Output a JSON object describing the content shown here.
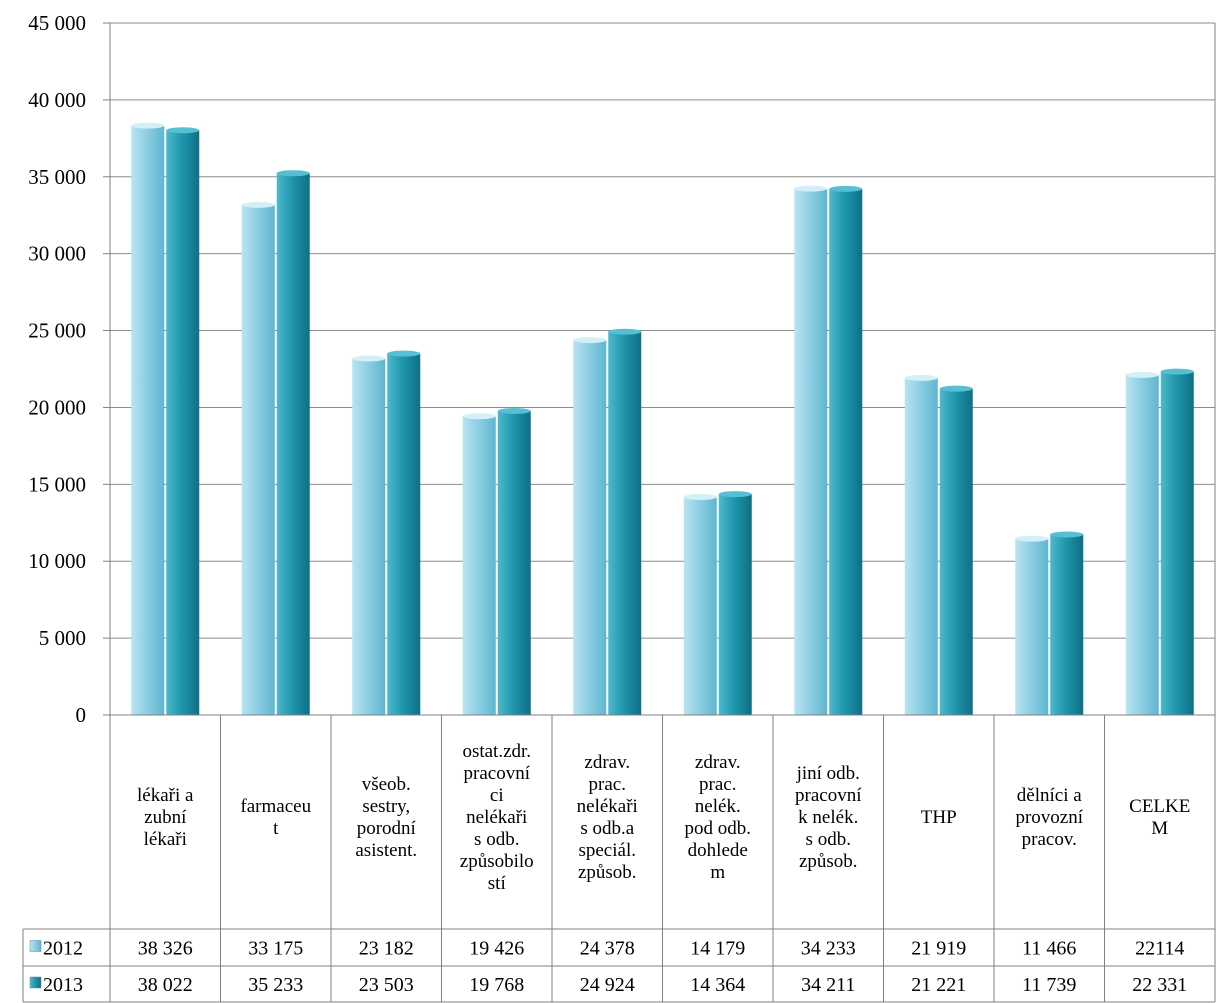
{
  "chart_data": {
    "type": "bar",
    "title": "",
    "xlabel": "",
    "ylabel": "",
    "ylim": [
      0,
      45000
    ],
    "yticks": [
      "0",
      "5 000",
      "10 000",
      "15 000",
      "20 000",
      "25 000",
      "30 000",
      "35 000",
      "40 000",
      "45 000"
    ],
    "ytick_values": [
      0,
      5000,
      10000,
      15000,
      20000,
      25000,
      30000,
      35000,
      40000,
      45000
    ],
    "grid": true,
    "legend_placement": "data-table-left",
    "categories": [
      "lékaři a zubní lékaři",
      "farmaceut",
      "všeob. sestry, porodní asistent.",
      "ostat.zdr. pracovníci nelékaři s odb. způsobilostí",
      "zdrav. prac. nelékaři s odb.a speciál. způsob.",
      "zdrav. prac. nelék. pod odb. dohledem",
      "jiní odb. pracovník nelék. s odb. způsob.",
      "THP",
      "dělníci a provozní pracov.",
      "CELKEM"
    ],
    "category_label_lines": [
      [
        "lékaři a",
        "zubní",
        "lékaři"
      ],
      [
        "farmaceu",
        "t"
      ],
      [
        "všeob.",
        "sestry,",
        "porodní",
        "asistent."
      ],
      [
        "ostat.zdr.",
        "pracovní",
        "ci",
        "nelékaři",
        "s odb.",
        "způsobilo",
        "stí"
      ],
      [
        "zdrav.",
        "prac.",
        "nelékaři",
        "s odb.a",
        "speciál.",
        "způsob."
      ],
      [
        "zdrav.",
        "prac.",
        "nelék.",
        "pod odb.",
        "dohlede",
        "m"
      ],
      [
        "jiní odb.",
        "pracovní",
        "k nelék.",
        "s odb.",
        "způsob."
      ],
      [
        "THP"
      ],
      [
        "dělníci a",
        "provozní",
        "pracov."
      ],
      [
        "CELKE",
        "M"
      ]
    ],
    "series": [
      {
        "name": "2012",
        "color": "#8fcfe3",
        "values": [
          38326,
          33175,
          23182,
          19426,
          24378,
          14179,
          34233,
          21919,
          11466,
          22114
        ],
        "labels": [
          "38 326",
          "33 175",
          "23 182",
          "19 426",
          "24 378",
          "14 179",
          "34 233",
          "21 919",
          "11 466",
          "22114"
        ]
      },
      {
        "name": "2013",
        "color": "#1f97ad",
        "values": [
          38022,
          35233,
          23503,
          19768,
          24924,
          14364,
          34211,
          21221,
          11739,
          22331
        ],
        "labels": [
          "38 022",
          "35 233",
          "23 503",
          "19 768",
          "24 924",
          "14 364",
          "34 211",
          "21 221",
          "11 739",
          "22 331"
        ]
      }
    ]
  }
}
